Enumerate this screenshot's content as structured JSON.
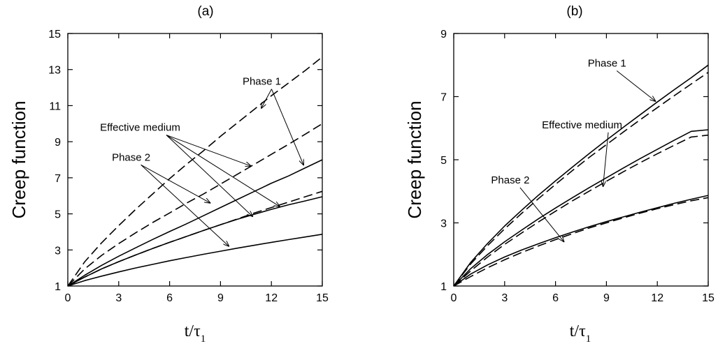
{
  "chart_data": [
    {
      "type": "line",
      "panel_label": "(a)",
      "xlabel": "t/τ1",
      "ylabel": "Creep function",
      "xlim": [
        0,
        15
      ],
      "ylim": [
        1,
        15
      ],
      "xticks": [
        0,
        3,
        6,
        9,
        12,
        15
      ],
      "yticks": [
        1,
        3,
        5,
        7,
        9,
        11,
        13,
        15
      ],
      "grid": false,
      "series": [
        {
          "group": "Phase 1",
          "style": "solid",
          "x": [
            0,
            1,
            2,
            3,
            4,
            5,
            6,
            7,
            8,
            9,
            10,
            11,
            12,
            13,
            14,
            15
          ],
          "y": [
            1,
            1.6,
            2.15,
            2.65,
            3.12,
            3.58,
            4.02,
            4.45,
            4.9,
            5.35,
            5.8,
            6.25,
            6.7,
            7.1,
            7.55,
            8.0
          ]
        },
        {
          "group": "Phase 1",
          "style": "dashed",
          "x": [
            0,
            1,
            2,
            3,
            4,
            5,
            6,
            7,
            8,
            9,
            10,
            11,
            12,
            13,
            14,
            15
          ],
          "y": [
            1,
            2.35,
            3.4,
            4.35,
            5.25,
            6.1,
            6.95,
            7.75,
            8.5,
            9.3,
            10.05,
            10.8,
            11.55,
            12.25,
            12.95,
            13.7
          ]
        },
        {
          "group": "Effective medium",
          "style": "solid",
          "x": [
            0,
            1,
            2,
            3,
            4,
            5,
            6,
            7,
            8,
            9,
            10,
            11,
            12,
            13,
            14,
            15
          ],
          "y": [
            1,
            1.5,
            1.95,
            2.35,
            2.72,
            3.08,
            3.42,
            3.75,
            4.08,
            4.4,
            4.7,
            4.98,
            5.25,
            5.5,
            5.72,
            5.95
          ]
        },
        {
          "group": "Effective medium",
          "style": "dashed",
          "x": [
            0,
            1,
            2,
            3,
            4,
            5,
            6,
            7,
            8,
            9,
            10,
            11,
            12,
            13,
            14,
            15
          ],
          "y": [
            1,
            1.95,
            2.7,
            3.35,
            3.95,
            4.52,
            5.05,
            5.6,
            6.1,
            6.65,
            7.2,
            7.75,
            8.3,
            8.85,
            9.42,
            10.0
          ]
        },
        {
          "group": "Effective medium",
          "style": "dashed",
          "x": [
            0,
            1,
            2,
            3,
            4,
            5,
            6,
            7,
            8,
            9,
            10,
            11,
            12,
            13,
            14,
            15
          ],
          "y": [
            1,
            1.5,
            1.95,
            2.35,
            2.72,
            3.08,
            3.42,
            3.75,
            4.08,
            4.4,
            4.72,
            5.05,
            5.35,
            5.65,
            5.95,
            6.25
          ]
        },
        {
          "group": "Phase 2",
          "style": "solid",
          "x": [
            0,
            1,
            2,
            3,
            4,
            5,
            6,
            7,
            8,
            9,
            10,
            11,
            12,
            13,
            14,
            15
          ],
          "y": [
            1,
            1.3,
            1.55,
            1.78,
            2.0,
            2.2,
            2.4,
            2.58,
            2.76,
            2.93,
            3.1,
            3.26,
            3.42,
            3.57,
            3.72,
            3.87
          ]
        }
      ],
      "annotations": [
        {
          "text": "Phase 1",
          "x": 10.3,
          "y": 12.15,
          "targets": [
            [
              11.4,
              10.85
            ],
            [
              13.9,
              7.7
            ]
          ]
        },
        {
          "text": "Effective medium",
          "x": 1.9,
          "y": 9.6,
          "targets": [
            [
              10.8,
              7.65
            ],
            [
              12.5,
              5.4
            ],
            [
              10.9,
              4.85
            ]
          ]
        },
        {
          "text": "Phase 2",
          "x": 2.6,
          "y": 7.95,
          "targets": [
            [
              8.4,
              5.6
            ],
            [
              9.5,
              3.2
            ]
          ]
        }
      ]
    },
    {
      "type": "line",
      "panel_label": "(b)",
      "xlabel": "t/τ1",
      "ylabel": "Creep function",
      "xlim": [
        0,
        15
      ],
      "ylim": [
        1,
        9
      ],
      "xticks": [
        0,
        3,
        6,
        9,
        12,
        15
      ],
      "yticks": [
        1,
        3,
        5,
        7,
        9
      ],
      "grid": false,
      "series": [
        {
          "group": "Phase 1",
          "style": "solid",
          "x": [
            0,
            1,
            2,
            3,
            4,
            5,
            6,
            7,
            8,
            9,
            10,
            11,
            12,
            13,
            14,
            15
          ],
          "y": [
            1,
            1.75,
            2.35,
            2.9,
            3.4,
            3.88,
            4.33,
            4.77,
            5.2,
            5.62,
            6.03,
            6.43,
            6.83,
            7.22,
            7.6,
            8.0
          ]
        },
        {
          "group": "Phase 1",
          "style": "dashed",
          "x": [
            0,
            1,
            2,
            3,
            4,
            5,
            6,
            7,
            8,
            9,
            10,
            11,
            12,
            13,
            14,
            15
          ],
          "y": [
            1,
            1.7,
            2.28,
            2.81,
            3.3,
            3.77,
            4.22,
            4.66,
            5.08,
            5.48,
            5.88,
            6.27,
            6.65,
            7.03,
            7.4,
            7.77
          ]
        },
        {
          "group": "Effective medium",
          "style": "solid",
          "x": [
            0,
            1,
            2,
            3,
            4,
            5,
            6,
            7,
            8,
            9,
            10,
            11,
            12,
            13,
            14,
            15
          ],
          "y": [
            1,
            1.55,
            2.0,
            2.4,
            2.77,
            3.13,
            3.47,
            3.8,
            4.12,
            4.43,
            4.74,
            5.04,
            5.33,
            5.62,
            5.9,
            5.95
          ]
        },
        {
          "group": "Effective medium",
          "style": "dashed",
          "x": [
            0,
            1,
            2,
            3,
            4,
            5,
            6,
            7,
            8,
            9,
            10,
            11,
            12,
            13,
            14,
            15
          ],
          "y": [
            1,
            1.48,
            1.92,
            2.32,
            2.68,
            3.03,
            3.37,
            3.7,
            4.01,
            4.32,
            4.62,
            4.91,
            5.19,
            5.46,
            5.72,
            5.78
          ]
        },
        {
          "group": "Phase 2",
          "style": "solid",
          "x": [
            0,
            1,
            2,
            3,
            4,
            5,
            6,
            7,
            8,
            9,
            10,
            11,
            12,
            13,
            14,
            15
          ],
          "y": [
            1,
            1.38,
            1.67,
            1.92,
            2.14,
            2.34,
            2.53,
            2.71,
            2.88,
            3.04,
            3.19,
            3.34,
            3.48,
            3.62,
            3.75,
            3.87
          ]
        },
        {
          "group": "Phase 2",
          "style": "dashed",
          "x": [
            0,
            1,
            2,
            3,
            4,
            5,
            6,
            7,
            8,
            9,
            10,
            11,
            12,
            13,
            14,
            15
          ],
          "y": [
            1,
            1.3,
            1.58,
            1.83,
            2.06,
            2.27,
            2.47,
            2.66,
            2.84,
            3.0,
            3.16,
            3.31,
            3.45,
            3.58,
            3.7,
            3.8
          ]
        }
      ],
      "annotations": [
        {
          "text": "Phase 1",
          "x": 7.9,
          "y": 7.95,
          "targets": [
            [
              11.9,
              6.85
            ]
          ]
        },
        {
          "text": "Effective medium",
          "x": 5.2,
          "y": 6.0,
          "targets": [
            [
              8.8,
              4.15
            ]
          ]
        },
        {
          "text": "Phase 2",
          "x": 2.2,
          "y": 4.25,
          "targets": [
            [
              6.5,
              2.4
            ]
          ]
        }
      ]
    }
  ]
}
